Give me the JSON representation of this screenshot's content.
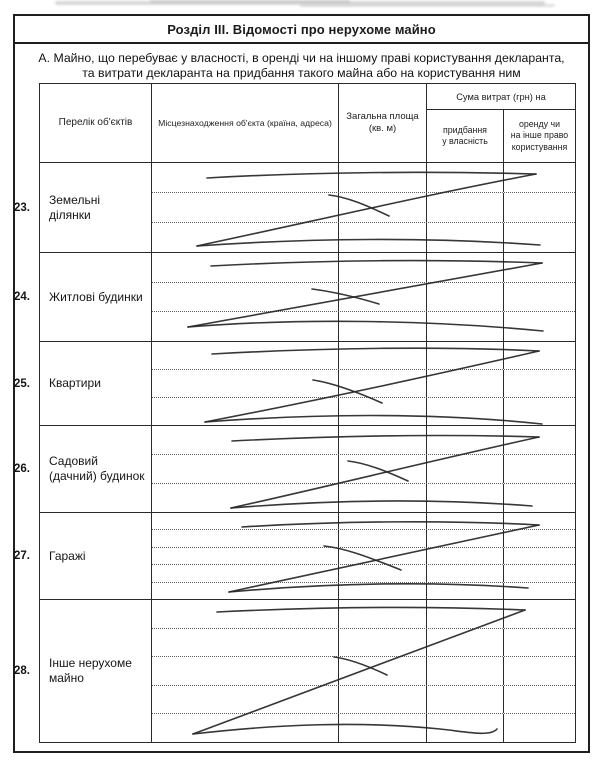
{
  "document": {
    "title": "Розділ III. Відомості про нерухоме майно",
    "section_note_line1": "А. Майно, що перебуває у власності, в оренді чи на іншому праві користування декларанта,",
    "section_note_line2": "та витрати декларанта на придбання такого майна або на користування ним"
  },
  "table": {
    "headers": {
      "objects": "Перелік об'єктів",
      "location": "Місцезнаходження об'єкта (країна, адреса)",
      "area_line1": "Загальна площа",
      "area_line2": "(кв. м)",
      "cost_group": "Сума витрат (грн) на",
      "cost_purchase_line1": "придбання",
      "cost_purchase_line2": "у власність",
      "cost_rent_line1": "оренду чи",
      "cost_rent_line2": "на інше право",
      "cost_rent_line3": "користування"
    },
    "rows": [
      {
        "number": "23.",
        "label": "Земельні ділянки",
        "location": "",
        "area": "",
        "cost_purchase": "",
        "cost_rent": "",
        "crossed_out": true
      },
      {
        "number": "24.",
        "label": "Житлові будинки",
        "location": "",
        "area": "",
        "cost_purchase": "",
        "cost_rent": "",
        "crossed_out": true
      },
      {
        "number": "25.",
        "label": "Квартири",
        "location": "",
        "area": "",
        "cost_purchase": "",
        "cost_rent": "",
        "crossed_out": true
      },
      {
        "number": "26.",
        "label": "Садовий (дачний) будинок",
        "location": "",
        "area": "",
        "cost_purchase": "",
        "cost_rent": "",
        "crossed_out": true
      },
      {
        "number": "27.",
        "label": "Гаражі",
        "location": "",
        "area": "",
        "cost_purchase": "",
        "cost_rent": "",
        "crossed_out": true
      },
      {
        "number": "28.",
        "label": "Інше нерухоме майно",
        "location": "",
        "area": "",
        "cost_purchase": "",
        "cost_rent": "",
        "crossed_out": true
      }
    ]
  },
  "colors": {
    "ink": "#262626",
    "border": "#2a2a2a",
    "paper": "#ffffff"
  }
}
